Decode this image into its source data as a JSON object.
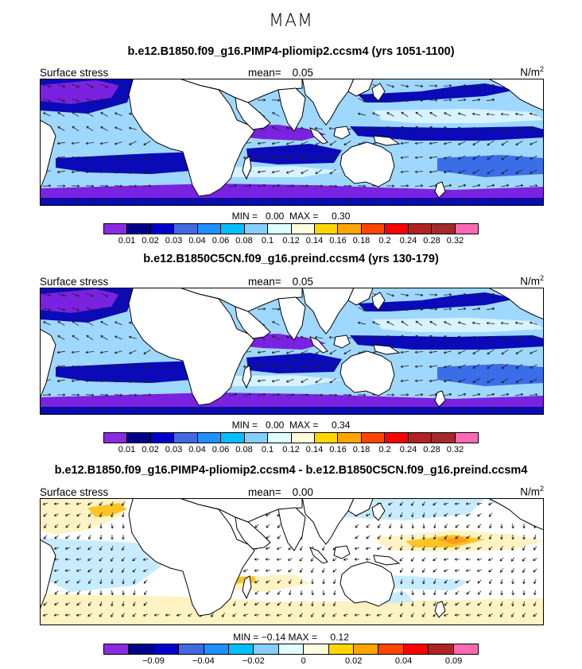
{
  "figure": {
    "season": "MAM",
    "units": "N/m",
    "units_exp": "2"
  },
  "panels": [
    {
      "title": "b.e12.B1850.f09_g16.PIMP4-pliomip2.ccsm4 (yrs 1051-1100)",
      "left_label": "Surface stress",
      "mean_label": "mean=",
      "mean_value": "0.05",
      "min_label": "MIN =",
      "min_value": "0.00",
      "max_label": "MAX =",
      "max_value": "0.30",
      "kind": "abs"
    },
    {
      "title": "b.e12.B1850C5CN.f09_g16.preind.ccsm4 (yrs 130-179)",
      "left_label": "Surface stress",
      "mean_label": "mean=",
      "mean_value": "0.05",
      "min_label": "MIN =",
      "min_value": "0.00",
      "max_label": "MAX =",
      "max_value": "0.34",
      "kind": "abs"
    },
    {
      "title": "b.e12.B1850.f09_g16.PIMP4-pliomip2.ccsm4 - b.e12.B1850C5CN.f09_g16.preind.ccsm4",
      "left_label": "Surface stress",
      "mean_label": "mean=",
      "mean_value": "0.00",
      "min_label": "MIN =",
      "min_value": "−0.14",
      "max_label": "MAX =",
      "max_value": "0.12",
      "kind": "diff"
    }
  ],
  "chart_data": [
    {
      "type": "heatmap",
      "title": "b.e12.B1850.f09_g16.PIMP4-pliomip2.ccsm4 (yrs 1051-1100)",
      "variable": "Surface stress",
      "units": "N/m2",
      "mean": 0.05,
      "min": 0.0,
      "max": 0.3,
      "levels": [
        0.01,
        0.02,
        0.03,
        0.04,
        0.06,
        0.08,
        0.1,
        0.12,
        0.14,
        0.16,
        0.18,
        0.2,
        0.24,
        0.28,
        0.32
      ],
      "tick_labels": [
        "0.01",
        "0.02",
        "0.03",
        "0.04",
        "0.06",
        "0.08",
        "0.1",
        "0.12",
        "0.14",
        "0.16",
        "0.18",
        "0.2",
        "0.24",
        "0.28",
        "0.32"
      ]
    },
    {
      "type": "heatmap",
      "title": "b.e12.B1850C5CN.f09_g16.preind.ccsm4 (yrs 130-179)",
      "variable": "Surface stress",
      "units": "N/m2",
      "mean": 0.05,
      "min": 0.0,
      "max": 0.34,
      "levels": [
        0.01,
        0.02,
        0.03,
        0.04,
        0.06,
        0.08,
        0.1,
        0.12,
        0.14,
        0.16,
        0.18,
        0.2,
        0.24,
        0.28,
        0.32
      ],
      "tick_labels": [
        "0.01",
        "0.02",
        "0.03",
        "0.04",
        "0.06",
        "0.08",
        "0.1",
        "0.12",
        "0.14",
        "0.16",
        "0.18",
        "0.2",
        "0.24",
        "0.28",
        "0.32"
      ]
    },
    {
      "type": "heatmap",
      "title": "b.e12.B1850.f09_g16.PIMP4-pliomip2.ccsm4 - b.e12.B1850C5CN.f09_g16.preind.ccsm4",
      "variable": "Surface stress",
      "units": "N/m2",
      "mean": 0.0,
      "min": -0.14,
      "max": 0.12,
      "tick_labels": [
        "−0.09",
        "−0.04",
        "−0.02",
        "0",
        "0.02",
        "0.04",
        "0.09"
      ]
    }
  ],
  "colorbars": {
    "abs_colors": [
      "#8a2be2",
      "#00008b",
      "#0000cd",
      "#4169e1",
      "#1e90ff",
      "#00bfff",
      "#87cefa",
      "#e0ffff",
      "#ffffe0",
      "#ffd700",
      "#ffa500",
      "#ff4500",
      "#ff0000",
      "#b22222",
      "#a52a2a",
      "#ff69b4"
    ],
    "diff_colors": [
      "#8a2be2",
      "#00008b",
      "#0000cd",
      "#4169e1",
      "#1e90ff",
      "#00bfff",
      "#87cefa",
      "#e0ffff",
      "#ffffe0",
      "#ffd700",
      "#ffa500",
      "#ff4500",
      "#ff0000",
      "#b22222",
      "#ff69b4"
    ]
  },
  "colors": {
    "land": "#ffffff",
    "abs_low": "#7a22e0",
    "abs_dark": "#0a0ab8",
    "abs_mid": "#3a6de8",
    "abs_light": "#9fd8ff",
    "abs_pale": "#d6f3ff",
    "diff_zero": "#ffffff",
    "diff_neg": "#c8ecff",
    "diff_pos": "#fff3c4",
    "diff_strong_pos": "#ffc422",
    "diff_orange": "#ff9a1a"
  }
}
